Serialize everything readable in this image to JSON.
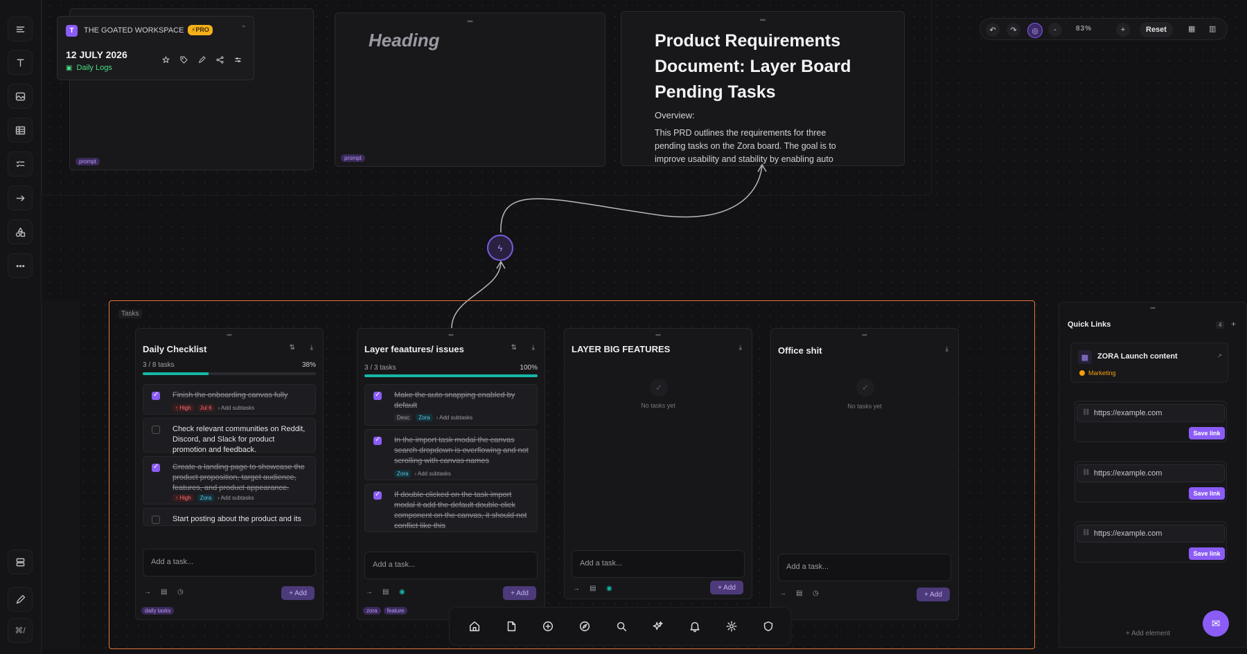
{
  "workspace": {
    "avatar_letter": "T",
    "name": "THE GOATED WORKSPACE",
    "plan_badge": "⚡PRO",
    "date": "12 JULY 2026",
    "log_label": "Daily Logs"
  },
  "prompt_cards": [
    {
      "pill": "prompt"
    },
    {
      "pill": "prompt"
    }
  ],
  "heading_card": {
    "text": "Heading"
  },
  "prd_card": {
    "title": "Product Requirements Document: Layer Board Pending Tasks",
    "overview_label": "Overview:",
    "body": "This PRD outlines the requirements for three pending tasks on the Zora board. The goal is to improve usability and stability by enabling auto"
  },
  "controls": {
    "zoom": "83%",
    "reset_label": "Reset",
    "zoom_out": "-",
    "zoom_in": "+"
  },
  "tasks_frame": {
    "label": "Tasks"
  },
  "columns": [
    {
      "title": "Daily Checklist",
      "progress_text": "3 / 8 tasks",
      "percent_label": "38%",
      "percent": 38,
      "tasks": [
        {
          "text": "Finish the onboarding canvas fully",
          "done": true,
          "tags": [
            "↑ High",
            "Jul 6",
            "› Add subtasks"
          ]
        },
        {
          "text": "Check relevant communities on Reddit, Discord, and Slack for product promotion and feedback.",
          "done": false,
          "tags": []
        },
        {
          "text": "Create a landing page to showcase the product proposition, target audience, features, and product appearance.",
          "done": true,
          "tags": [
            "↑ High",
            "Zora",
            "› Add subtasks"
          ]
        },
        {
          "text": "Start posting about the product and its",
          "done": false,
          "tags": []
        }
      ],
      "input_placeholder": "Add a task...",
      "add_label": "+ Add",
      "footer_tag": "daily tasks"
    },
    {
      "title": "Layer feaatures/ issues",
      "progress_text": "3 / 3 tasks",
      "percent_label": "100%",
      "percent": 100,
      "tasks": [
        {
          "text": "Make the auto snapping enabled by default",
          "done": true,
          "tags": [
            "Desc",
            "Zora",
            "› Add subtasks"
          ]
        },
        {
          "text": "In the import task modal the canvas search dropdown is overflowing and not scrolling with canvas names",
          "done": true,
          "tags": [
            "Zora",
            "› Add subtasks"
          ]
        },
        {
          "text": "If double clicked on the task import modal it add the default double click component on the canvas, it should not conflict like this",
          "done": true,
          "tags": []
        }
      ],
      "input_placeholder": "Add a task...",
      "add_label": "+ Add",
      "footer_tags": [
        "zora",
        "feature"
      ]
    },
    {
      "title": "LAYER BIG FEATURES",
      "empty_text": "No tasks yet",
      "input_placeholder": "Add a task...",
      "add_label": "+ Add"
    },
    {
      "title": "Office shit",
      "empty_text": "No tasks yet",
      "input_placeholder": "Add a task...",
      "add_label": "+ Add"
    }
  ],
  "quick_links": {
    "title": "Quick Links",
    "count": "4",
    "featured": {
      "title": "ZORA Launch content",
      "category": "Marketing"
    },
    "inputs": [
      {
        "placeholder": "https://example.com",
        "save_label": "Save link"
      },
      {
        "placeholder": "https://example.com",
        "save_label": "Save link"
      },
      {
        "placeholder": "https://example.com",
        "save_label": "Save link"
      }
    ],
    "add_element_label": "+ Add element"
  },
  "shortcut_hint": "⌘/"
}
